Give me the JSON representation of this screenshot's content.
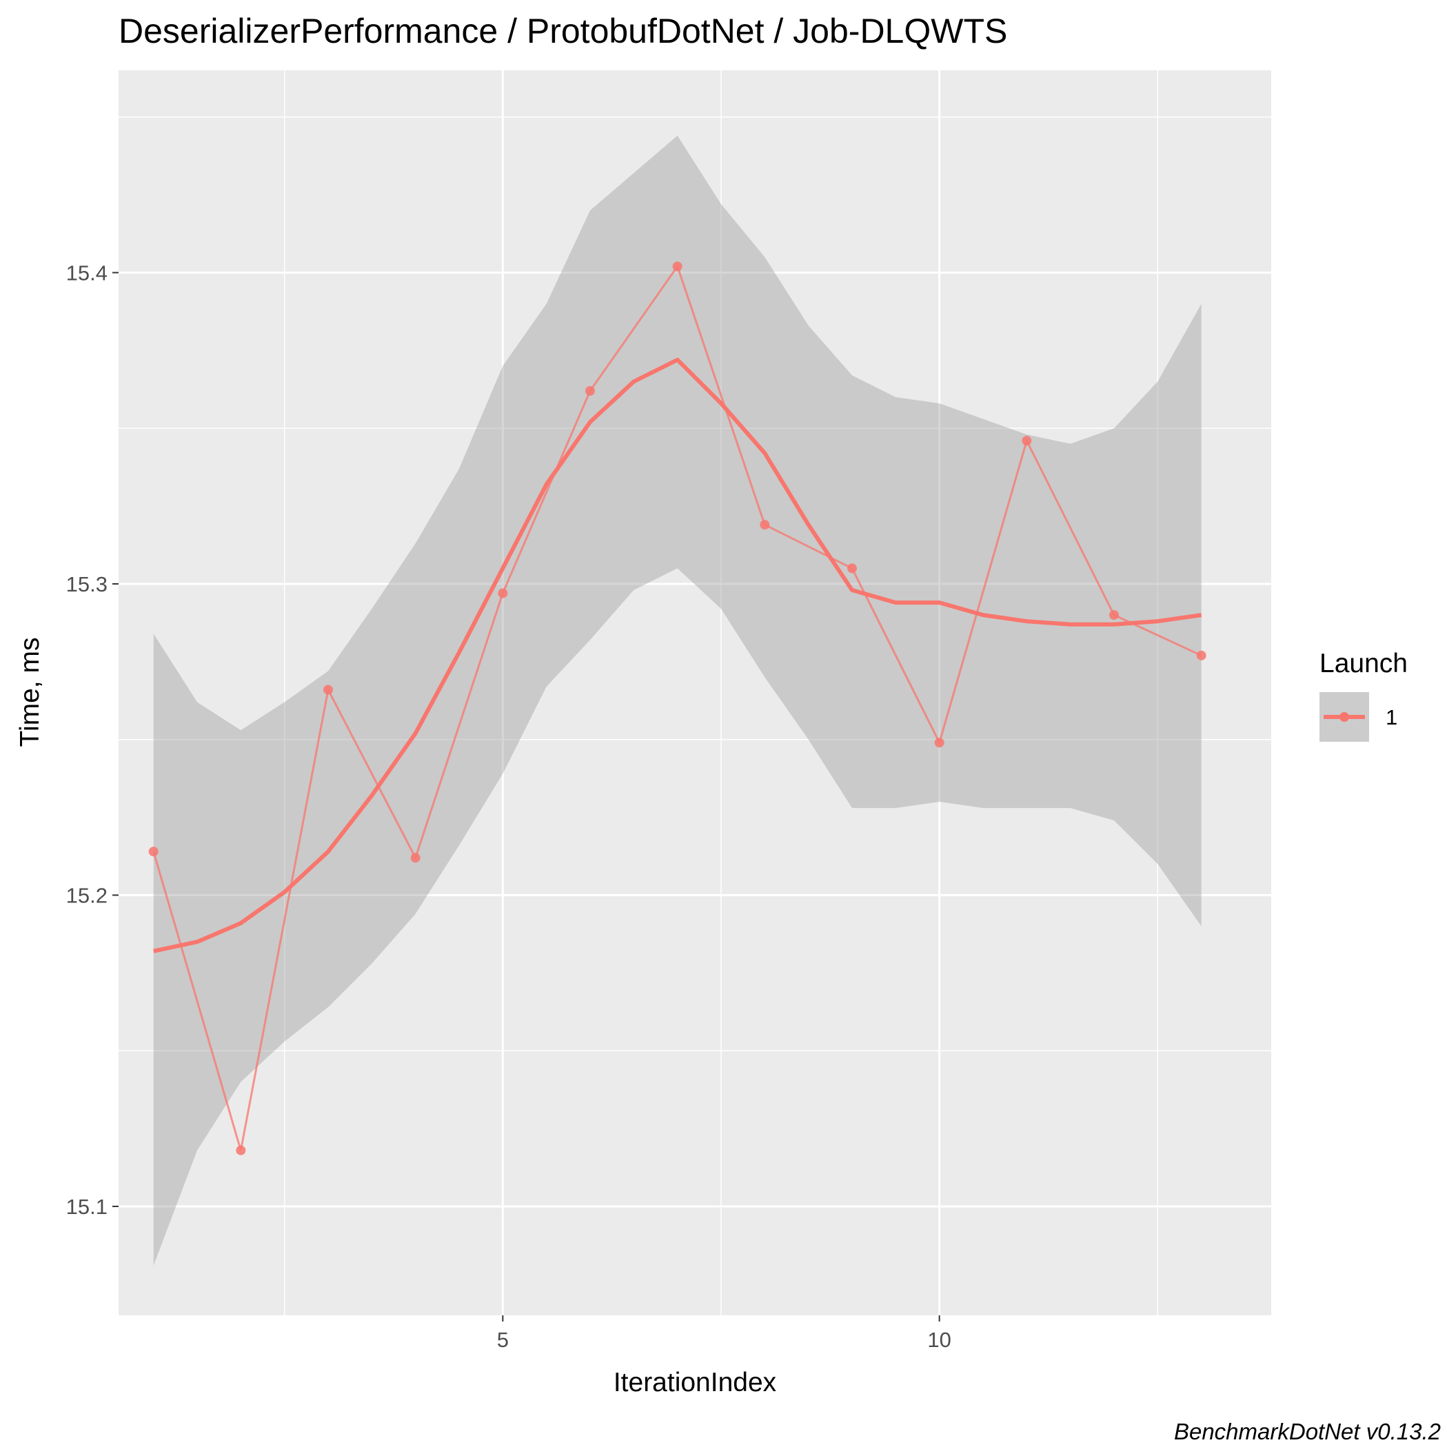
{
  "chart_data": {
    "type": "line",
    "title": "DeserializerPerformance / ProtobufDotNet / Job-DLQWTS",
    "xlabel": "IterationIndex",
    "ylabel": "Time, ms",
    "x_ticks": [
      5,
      10
    ],
    "y_ticks": [
      15.1,
      15.2,
      15.3,
      15.4
    ],
    "xlim": [
      0.6,
      13.8
    ],
    "ylim": [
      15.065,
      15.465
    ],
    "grid": true,
    "legend": {
      "title": "Launch",
      "position": "right",
      "entries": [
        "1"
      ]
    },
    "caption": "BenchmarkDotNet v0.13.2",
    "series": [
      {
        "name": "1",
        "color": "#F8766D",
        "x": [
          1,
          2,
          3,
          4,
          5,
          6,
          7,
          8,
          9,
          10,
          11,
          12,
          13
        ],
        "y": [
          15.214,
          15.118,
          15.266,
          15.212,
          15.297,
          15.362,
          15.402,
          15.319,
          15.305,
          15.249,
          15.346,
          15.29,
          15.277
        ]
      }
    ],
    "smooth": {
      "color": "#F8766D",
      "band_color": "#999999",
      "x": [
        1,
        1.5,
        2,
        2.5,
        3,
        3.5,
        4,
        4.5,
        5,
        5.5,
        6,
        6.5,
        7,
        7.5,
        8,
        8.5,
        9,
        9.5,
        10,
        10.5,
        11,
        11.5,
        12,
        12.5,
        13
      ],
      "y": [
        15.182,
        15.185,
        15.191,
        15.201,
        15.214,
        15.232,
        15.252,
        15.278,
        15.305,
        15.332,
        15.352,
        15.365,
        15.372,
        15.358,
        15.342,
        15.319,
        15.298,
        15.294,
        15.294,
        15.29,
        15.288,
        15.287,
        15.287,
        15.288,
        15.29
      ],
      "ymin": [
        15.081,
        15.118,
        15.14,
        15.153,
        15.164,
        15.178,
        15.194,
        15.216,
        15.239,
        15.267,
        15.282,
        15.298,
        15.305,
        15.292,
        15.27,
        15.25,
        15.228,
        15.228,
        15.23,
        15.228,
        15.228,
        15.228,
        15.224,
        15.21,
        15.19
      ],
      "ymax": [
        15.284,
        15.262,
        15.253,
        15.262,
        15.272,
        15.292,
        15.313,
        15.337,
        15.37,
        15.39,
        15.42,
        15.432,
        15.444,
        15.422,
        15.405,
        15.383,
        15.367,
        15.36,
        15.358,
        15.353,
        15.348,
        15.345,
        15.35,
        15.365,
        15.39
      ]
    }
  }
}
